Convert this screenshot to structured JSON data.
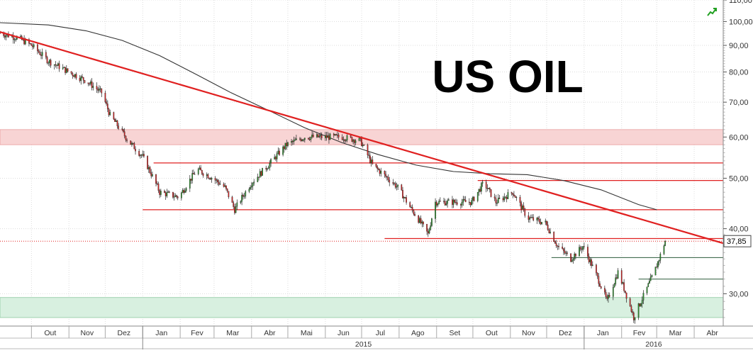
{
  "chart_data": {
    "type": "candlestick",
    "title": "US OIL",
    "y_scale": "log",
    "ylim": [
      26,
      110
    ],
    "y_ticks": [
      "110,00",
      "100,00",
      "90,00",
      "80,00",
      "70,00",
      "60,00",
      "50,00",
      "40,00",
      "30,00"
    ],
    "y_tick_values": [
      110,
      100,
      90,
      80,
      70,
      60,
      50,
      40,
      30
    ],
    "x_months": [
      "Out",
      "Nov",
      "Dez",
      "Jan",
      "Fev",
      "Mar",
      "Abr",
      "Mai",
      "Jun",
      "Jul",
      "Ago",
      "Set",
      "Out",
      "Nov",
      "Dez",
      "Jan",
      "Fev",
      "Mar",
      "Abr"
    ],
    "x_years": [
      "2015",
      "2016"
    ],
    "x_range": [
      "2014-09-05",
      "2016-04-25"
    ],
    "last_price_label": "37,85",
    "last_price": 37.85,
    "price_path": [
      [
        "2014-09-05",
        95
      ],
      [
        "2014-09-20",
        93
      ],
      [
        "2014-10-01",
        90
      ],
      [
        "2014-10-15",
        84
      ],
      [
        "2014-11-01",
        80
      ],
      [
        "2014-11-15",
        77
      ],
      [
        "2014-11-28",
        73
      ],
      [
        "2014-12-05",
        66
      ],
      [
        "2014-12-20",
        59
      ],
      [
        "2015-01-01",
        55
      ],
      [
        "2015-01-15",
        47
      ],
      [
        "2015-01-31",
        46
      ],
      [
        "2015-02-15",
        52
      ],
      [
        "2015-02-28",
        50
      ],
      [
        "2015-03-10",
        48
      ],
      [
        "2015-03-18",
        43.5
      ],
      [
        "2015-04-01",
        49
      ],
      [
        "2015-04-15",
        53
      ],
      [
        "2015-04-30",
        58
      ],
      [
        "2015-05-15",
        60
      ],
      [
        "2015-05-31",
        60
      ],
      [
        "2015-06-15",
        60
      ],
      [
        "2015-06-30",
        59
      ],
      [
        "2015-07-10",
        53
      ],
      [
        "2015-07-31",
        48
      ],
      [
        "2015-08-10",
        44
      ],
      [
        "2015-08-25",
        39
      ],
      [
        "2015-08-31",
        45
      ],
      [
        "2015-09-15",
        45
      ],
      [
        "2015-09-30",
        45
      ],
      [
        "2015-10-10",
        49
      ],
      [
        "2015-10-20",
        45
      ],
      [
        "2015-11-03",
        47
      ],
      [
        "2015-11-15",
        42
      ],
      [
        "2015-11-30",
        41
      ],
      [
        "2015-12-10",
        37
      ],
      [
        "2015-12-21",
        35
      ],
      [
        "2015-12-31",
        37
      ],
      [
        "2016-01-10",
        33
      ],
      [
        "2016-01-20",
        29
      ],
      [
        "2016-01-29",
        33
      ],
      [
        "2016-02-11",
        27
      ],
      [
        "2016-02-20",
        30
      ],
      [
        "2016-02-28",
        33
      ],
      [
        "2016-03-03",
        35
      ],
      [
        "2016-03-08",
        37.85
      ]
    ],
    "moving_average": [
      [
        "2014-09-05",
        99.5
      ],
      [
        "2014-10-15",
        98.5
      ],
      [
        "2014-11-15",
        96
      ],
      [
        "2014-12-15",
        92
      ],
      [
        "2015-01-15",
        86
      ],
      [
        "2015-02-15",
        79
      ],
      [
        "2015-03-15",
        73
      ],
      [
        "2015-04-15",
        67.5
      ],
      [
        "2015-05-15",
        62.5
      ],
      [
        "2015-06-15",
        58.5
      ],
      [
        "2015-07-15",
        55.5
      ],
      [
        "2015-08-15",
        53
      ],
      [
        "2015-09-15",
        51.5
      ],
      [
        "2015-10-15",
        51
      ],
      [
        "2015-11-15",
        50.8
      ],
      [
        "2015-12-15",
        49.5
      ],
      [
        "2016-01-15",
        47.5
      ],
      [
        "2016-02-15",
        44.5
      ],
      [
        "2016-03-01",
        43.5
      ]
    ],
    "trendline": {
      "from": [
        "2014-09-05",
        95.5
      ],
      "to": [
        "2016-04-25",
        37.5
      ]
    },
    "support_resistance_lines": [
      {
        "value": 53.5,
        "from": "2015-01-10",
        "to": "2016-04-25"
      },
      {
        "value": 49.5,
        "from": "2015-10-05",
        "to": "2016-04-25"
      },
      {
        "value": 43.5,
        "from": "2015-01-01",
        "to": "2016-04-25"
      },
      {
        "value": 38.3,
        "from": "2015-07-20",
        "to": "2016-04-25"
      }
    ],
    "horizontal_support_dark": [
      {
        "value": 35.2,
        "from": "2015-12-05",
        "to": "2016-04-25"
      },
      {
        "value": 32.0,
        "from": "2016-02-15",
        "to": "2016-04-25"
      }
    ],
    "zones": [
      {
        "color": "#f8d4d4",
        "from_value": 58.0,
        "to_value": 62.0
      },
      {
        "color": "#d8f0e0",
        "from_value": 27.0,
        "to_value": 29.5
      }
    ],
    "candle_up_color": "#2a8a2a",
    "candle_down_color": "#cc2222",
    "trendline_color": "#e02020",
    "ma_color": "#333333",
    "corner_icon": "trend-up-arrow-icon"
  }
}
